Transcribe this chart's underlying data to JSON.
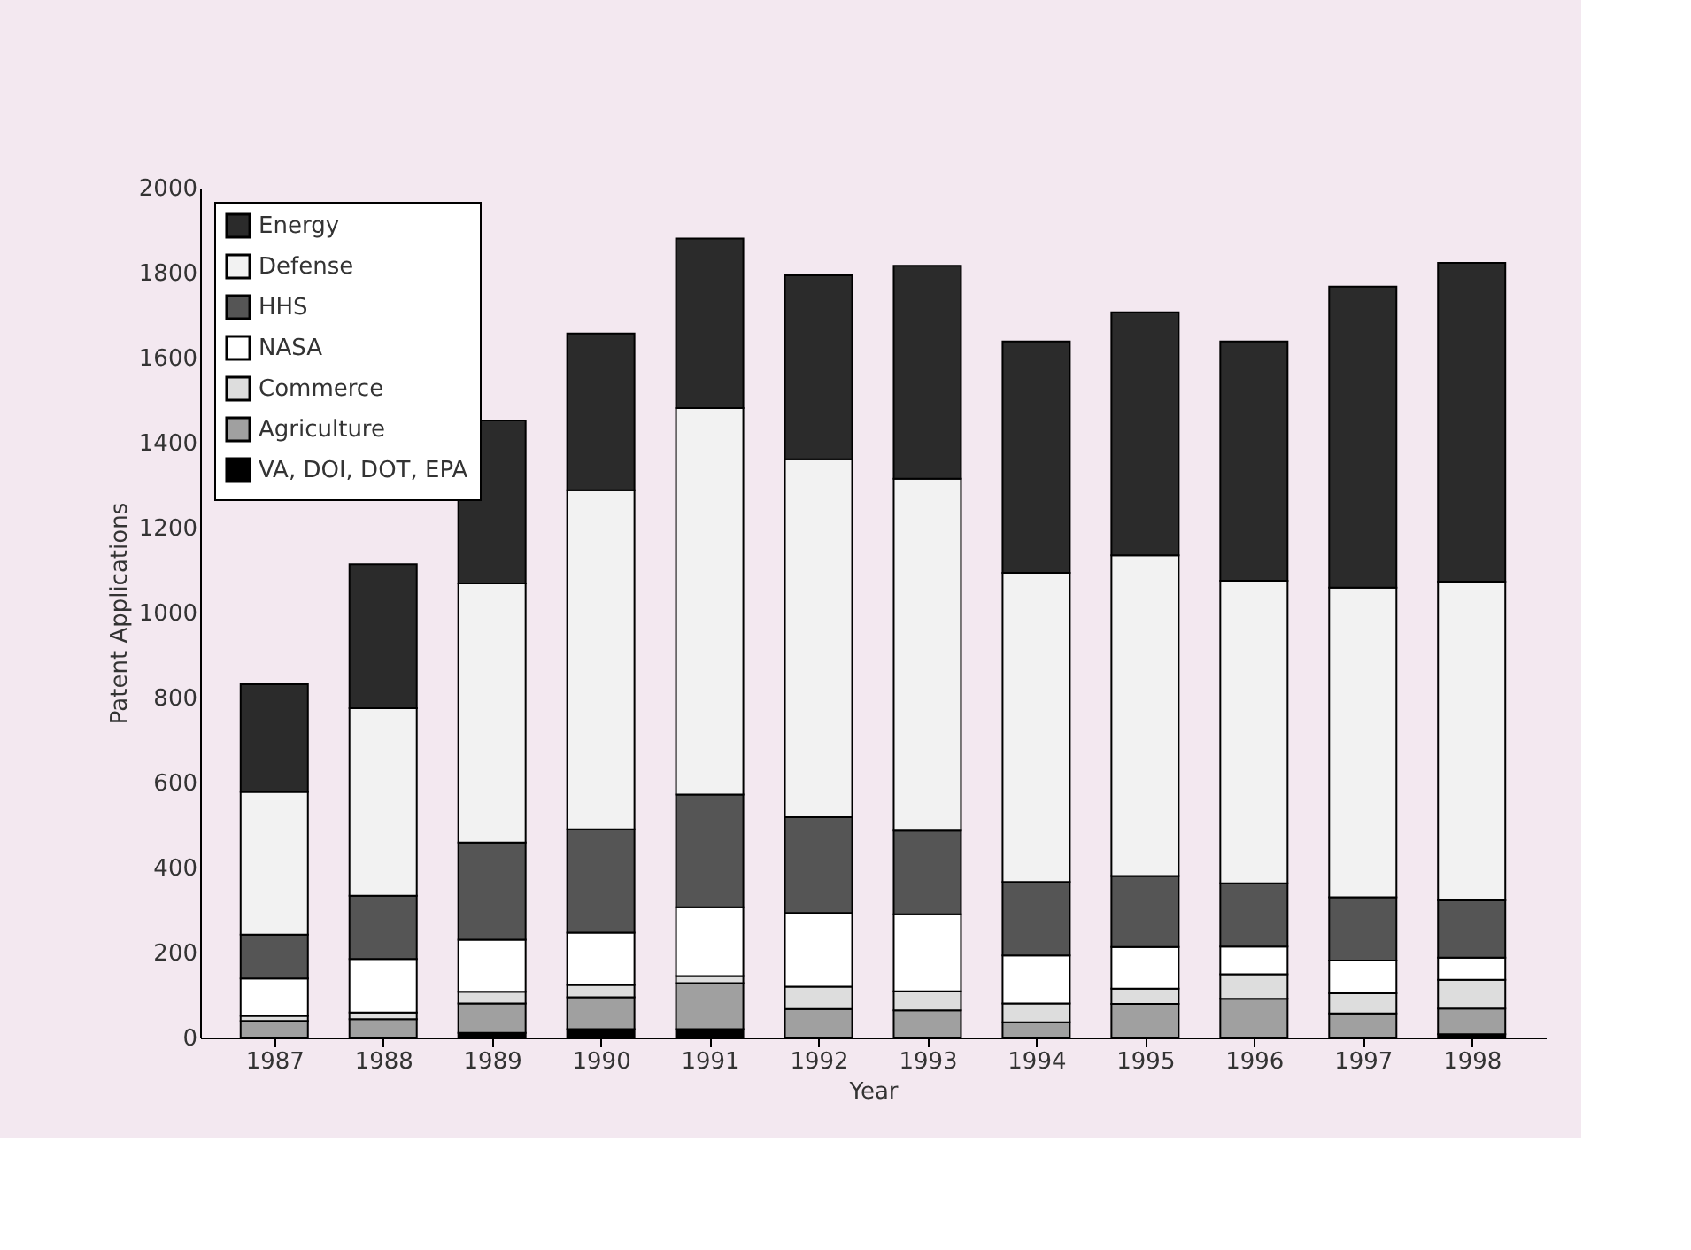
{
  "chart_data": {
    "type": "bar",
    "stacked": true,
    "categories": [
      "1987",
      "1988",
      "1989",
      "1990",
      "1991",
      "1992",
      "1993",
      "1994",
      "1995",
      "1996",
      "1997",
      "1998"
    ],
    "xlabel": "Year",
    "ylabel": "Patent Applications",
    "ylim": [
      0,
      2000
    ],
    "yticks": [
      0,
      200,
      400,
      600,
      800,
      1000,
      1200,
      1400,
      1600,
      1800,
      2000
    ],
    "grid": false,
    "legend": "top left",
    "series": [
      {
        "name": "VA, DOI, DOT, EPA",
        "color": "#000000",
        "values": [
          null,
          null,
          11,
          20,
          20,
          0,
          0,
          0,
          0,
          0,
          0,
          8
        ]
      },
      {
        "name": "Agriculture",
        "color": "#a0a0a0",
        "values": [
          39,
          43,
          69,
          75,
          108,
          67,
          64,
          36,
          79,
          91,
          57,
          60
        ]
      },
      {
        "name": "Commerce",
        "color": "#dddddd",
        "values": [
          12,
          16,
          28,
          29,
          17,
          53,
          45,
          44,
          36,
          58,
          47,
          68
        ]
      },
      {
        "name": " NASA",
        "color": "#ffffff",
        "values": [
          88,
          126,
          122,
          123,
          162,
          173,
          181,
          113,
          98,
          65,
          77,
          52
        ]
      },
      {
        "name": "HHS",
        "color": "#555555",
        "values": [
          103,
          149,
          229,
          243,
          265,
          226,
          197,
          173,
          167,
          149,
          149,
          135
        ]
      },
      {
        "name": "Defense",
        "color": "#f2f2f2",
        "values": [
          336,
          441,
          610,
          798,
          909,
          842,
          828,
          728,
          755,
          712,
          729,
          750
        ]
      },
      {
        "name": "Energy",
        "color": "#2b2b2b",
        "values": [
          253,
          339,
          383,
          369,
          399,
          433,
          501,
          544,
          572,
          563,
          708,
          750
        ]
      }
    ]
  }
}
